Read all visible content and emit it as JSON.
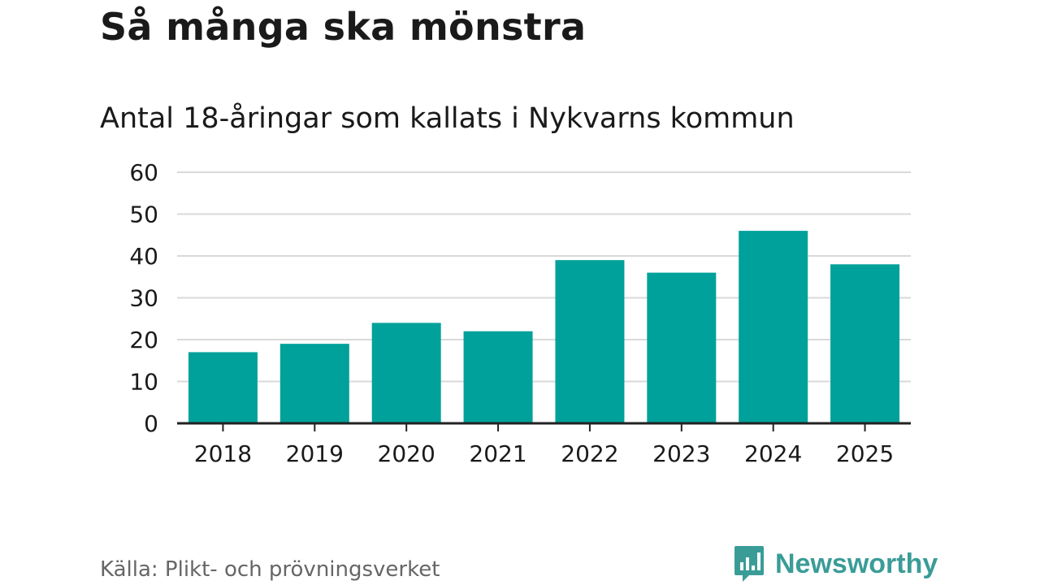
{
  "title": "Så många ska mönstra",
  "subtitle": "Antal 18-åringar som kallats i Nykvarns kommun",
  "source": "Källa: Plikt- och prövningsverket",
  "brand": {
    "name": "Newsworthy",
    "icon": "chart-speech-bubble-icon"
  },
  "colors": {
    "bar": "#00a19a",
    "brand": "#3a9c97",
    "grid": "#d9d9d9",
    "axis": "#222222",
    "text": "#1a1a1a",
    "source": "#666666"
  },
  "chart_data": {
    "type": "bar",
    "categories": [
      "2018",
      "2019",
      "2020",
      "2021",
      "2022",
      "2023",
      "2024",
      "2025"
    ],
    "values": [
      17,
      19,
      24,
      22,
      39,
      36,
      46,
      38
    ],
    "ylim": [
      0,
      60
    ],
    "yticks": [
      "0",
      "10",
      "20",
      "30",
      "40",
      "50",
      "60"
    ],
    "xlabel": "",
    "ylabel": "",
    "grid": true
  }
}
